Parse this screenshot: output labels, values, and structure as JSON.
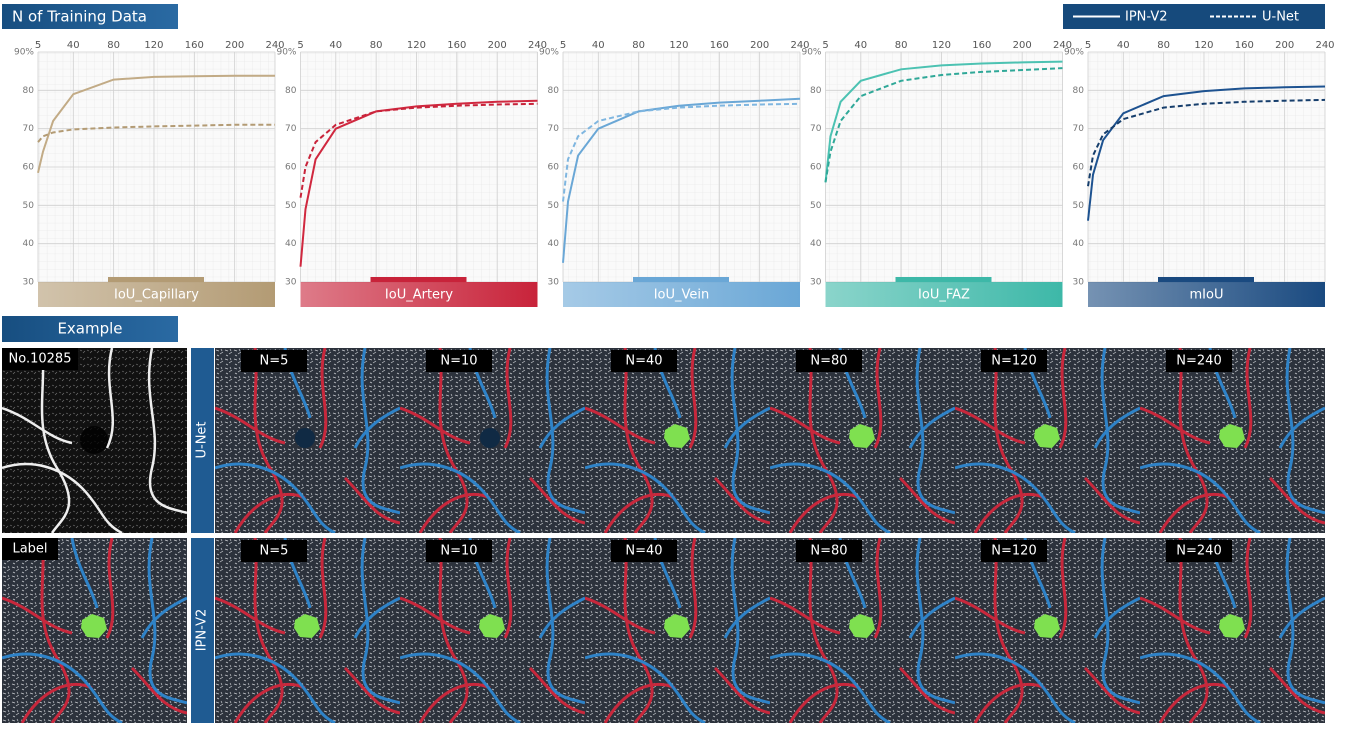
{
  "header": {
    "title": "N of Training Data"
  },
  "chart_data": [
    {
      "type": "line",
      "title": "IoU_Capillary",
      "x": [
        5,
        10,
        20,
        40,
        80,
        120,
        160,
        200,
        240
      ],
      "xlim": [
        5,
        240
      ],
      "xticks": [
        5,
        40,
        80,
        120,
        160,
        200,
        240
      ],
      "ylim": [
        30,
        90
      ],
      "yticks": [
        30,
        40,
        50,
        60,
        70,
        80,
        {
          "value": 90,
          "label": "90%"
        }
      ],
      "grid": true,
      "color": "#b39b74",
      "series": [
        {
          "name": "IPN-V2",
          "color": "#c2ab86",
          "values": [
            58.5,
            64,
            72,
            79,
            82.8,
            83.5,
            83.7,
            83.8,
            83.8
          ]
        },
        {
          "name": "U-Net",
          "color": "#b39b74",
          "values": [
            66.5,
            68,
            69,
            69.8,
            70.3,
            70.6,
            70.8,
            71,
            71
          ]
        }
      ]
    },
    {
      "type": "line",
      "title": "IoU_Artery",
      "x": [
        5,
        10,
        20,
        40,
        80,
        120,
        160,
        200,
        240
      ],
      "xlim": [
        5,
        240
      ],
      "xticks": [
        5,
        40,
        80,
        120,
        160,
        200,
        240
      ],
      "ylim": [
        30,
        90
      ],
      "yticks": [
        30,
        40,
        50,
        60,
        70,
        80,
        {
          "value": 90,
          "label": "90%"
        }
      ],
      "grid": true,
      "color": "#c8233a",
      "series": [
        {
          "name": "IPN-V2",
          "color": "#d0283f",
          "values": [
            34,
            49,
            62,
            70,
            74.5,
            75.8,
            76.5,
            77,
            77.3
          ]
        },
        {
          "name": "U-Net",
          "color": "#c8233a",
          "values": [
            52,
            60,
            66.5,
            71,
            74.5,
            75.5,
            76,
            76.3,
            76.5
          ]
        }
      ]
    },
    {
      "type": "line",
      "title": "IoU_Vein",
      "x": [
        5,
        10,
        20,
        40,
        80,
        120,
        160,
        200,
        240
      ],
      "xlim": [
        5,
        240
      ],
      "xticks": [
        5,
        40,
        80,
        120,
        160,
        200,
        240
      ],
      "ylim": [
        30,
        90
      ],
      "yticks": [
        30,
        40,
        50,
        60,
        70,
        80,
        {
          "value": 90,
          "label": "90%"
        }
      ],
      "grid": true,
      "color": "#6aa7d6",
      "series": [
        {
          "name": "IPN-V2",
          "color": "#6aa7d6",
          "values": [
            35,
            51,
            63,
            70,
            74.5,
            76,
            76.8,
            77.3,
            77.8
          ]
        },
        {
          "name": "U-Net",
          "color": "#7fb6e0",
          "values": [
            51,
            62,
            68,
            72,
            74.5,
            75.5,
            76,
            76.3,
            76.5
          ]
        }
      ]
    },
    {
      "type": "line",
      "title": "IoU_FAZ",
      "x": [
        5,
        10,
        20,
        40,
        80,
        120,
        160,
        200,
        240
      ],
      "xlim": [
        5,
        240
      ],
      "xticks": [
        5,
        40,
        80,
        120,
        160,
        200,
        240
      ],
      "ylim": [
        30,
        90
      ],
      "yticks": [
        30,
        40,
        50,
        60,
        70,
        80,
        {
          "value": 90,
          "label": "90%"
        }
      ],
      "grid": true,
      "color": "#3db8a8",
      "series": [
        {
          "name": "IPN-V2",
          "color": "#4cc2b2",
          "values": [
            56,
            68,
            77,
            82.5,
            85.5,
            86.5,
            87,
            87.3,
            87.5
          ]
        },
        {
          "name": "U-Net",
          "color": "#2fa898",
          "values": [
            56,
            64,
            72,
            78.5,
            82.5,
            84,
            84.8,
            85.3,
            85.8
          ]
        }
      ]
    },
    {
      "type": "line",
      "title": "mIoU",
      "x": [
        5,
        10,
        20,
        40,
        80,
        120,
        160,
        200,
        240
      ],
      "xlim": [
        5,
        240
      ],
      "xticks": [
        5,
        40,
        80,
        120,
        160,
        200,
        240
      ],
      "ylim": [
        30,
        90
      ],
      "yticks": [
        30,
        40,
        50,
        60,
        70,
        80,
        {
          "value": 90,
          "label": "90%"
        }
      ],
      "grid": true,
      "color": "#1a4a80",
      "series": [
        {
          "name": "IPN-V2",
          "color": "#1d5290",
          "values": [
            46,
            58,
            67,
            74,
            78.5,
            79.8,
            80.5,
            80.8,
            81
          ]
        },
        {
          "name": "U-Net",
          "color": "#163e6c",
          "values": [
            55,
            63,
            68.5,
            72.5,
            75.5,
            76.5,
            77,
            77.3,
            77.5
          ]
        }
      ]
    }
  ],
  "example": {
    "title": "Example",
    "sample": "No.10285",
    "label": "Label",
    "rows": [
      {
        "model": "U-Net",
        "panels": [
          "N=5",
          "N=10",
          "N=40",
          "N=80",
          "N=120",
          "N=240"
        ]
      },
      {
        "model": "IPN-V2",
        "panels": [
          "N=5",
          "N=10",
          "N=40",
          "N=80",
          "N=120",
          "N=240"
        ]
      }
    ]
  }
}
